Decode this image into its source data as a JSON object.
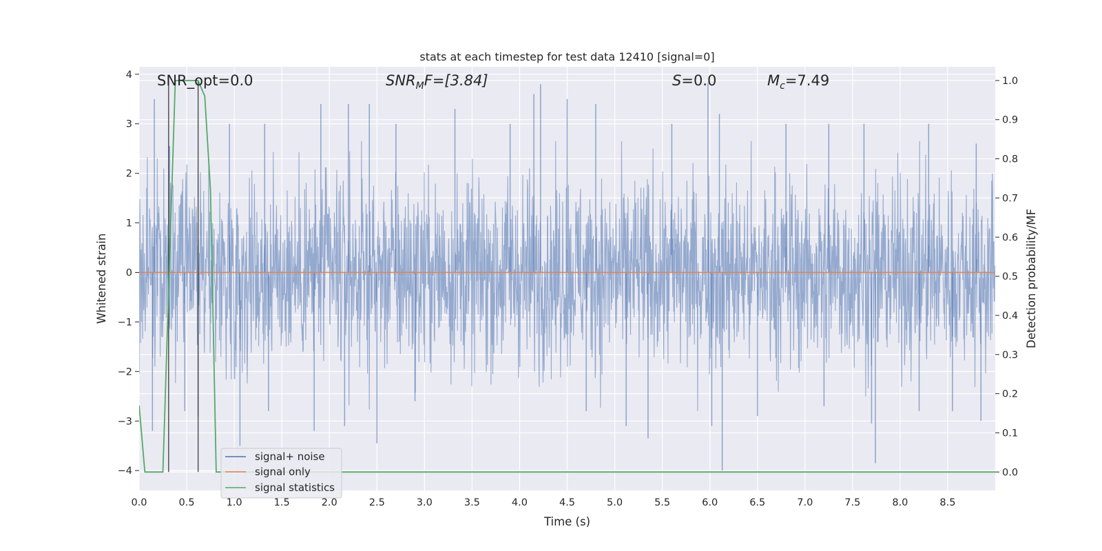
{
  "chart_data": {
    "type": "line",
    "title": "stats at each timestep for test data 12410 [signal=0]",
    "xlabel": "Time (s)",
    "ylabel": "Whitened strain",
    "ylabel_right": "Detection probability/MF",
    "xlim": [
      0.0,
      9.0
    ],
    "ylim": [
      -4.4,
      4.15
    ],
    "ylim_right": [
      -0.047,
      1.035
    ],
    "grid": true,
    "legend_position": "lower-left",
    "x_ticks": [
      "0.0",
      "0.5",
      "1.0",
      "1.5",
      "2.0",
      "2.5",
      "3.0",
      "3.5",
      "4.0",
      "4.5",
      "5.0",
      "5.5",
      "6.0",
      "6.5",
      "7.0",
      "7.5",
      "8.0",
      "8.5"
    ],
    "y_ticks": [
      "4",
      "3",
      "2",
      "1",
      "0",
      "−1",
      "−2",
      "−3",
      "−4"
    ],
    "y_ticks_right": [
      "1.0",
      "0.9",
      "0.8",
      "0.7",
      "0.6",
      "0.5",
      "0.4",
      "0.3",
      "0.2",
      "0.1",
      "0.0"
    ],
    "annotations": [
      {
        "text": "SNR_opt=0.0",
        "style": "plain"
      },
      {
        "text": "SNR_MF=[3.84]",
        "style": "math",
        "base": "SNR",
        "sub": "M",
        "tail": "F=[3.84]"
      },
      {
        "text": "S=0.0",
        "style": "math",
        "base": "S",
        "sub": "",
        "tail": "=0.0"
      },
      {
        "text": "M_c=7.49",
        "style": "math",
        "base": "M",
        "sub": "c",
        "tail": "=7.49"
      }
    ],
    "series": [
      {
        "name": "signal+ noise",
        "color": "#4c72b0",
        "kind": "noise",
        "envelope": {
          "core": [
            -1.6,
            1.45
          ],
          "typical_peak": [
            -2.5,
            2.4
          ],
          "max": 3.82,
          "min": -4.0
        },
        "spikes": [
          {
            "x": 0.16,
            "y": 3.5
          },
          {
            "x": 0.32,
            "y": 2.55
          },
          {
            "x": 0.95,
            "y": 3.0
          },
          {
            "x": 1.32,
            "y": 3.0
          },
          {
            "x": 1.91,
            "y": 3.4
          },
          {
            "x": 2.2,
            "y": 3.4
          },
          {
            "x": 2.42,
            "y": 3.4
          },
          {
            "x": 2.7,
            "y": 3.0
          },
          {
            "x": 3.32,
            "y": 3.3
          },
          {
            "x": 3.9,
            "y": 3.0
          },
          {
            "x": 4.15,
            "y": 3.6
          },
          {
            "x": 4.22,
            "y": 3.8
          },
          {
            "x": 4.5,
            "y": 3.5
          },
          {
            "x": 4.8,
            "y": 3.4
          },
          {
            "x": 5.6,
            "y": 3.0
          },
          {
            "x": 5.98,
            "y": 3.82
          },
          {
            "x": 6.1,
            "y": 3.2
          },
          {
            "x": 6.8,
            "y": 3.0
          },
          {
            "x": 7.25,
            "y": 3.0
          },
          {
            "x": 7.62,
            "y": 3.0
          },
          {
            "x": 8.3,
            "y": 3.0
          },
          {
            "x": 8.8,
            "y": 2.6
          },
          {
            "x": 0.14,
            "y": -3.2
          },
          {
            "x": 0.48,
            "y": -2.8
          },
          {
            "x": 0.62,
            "y": -2.9
          },
          {
            "x": 1.06,
            "y": -3.5
          },
          {
            "x": 1.36,
            "y": -2.8
          },
          {
            "x": 1.84,
            "y": -3.2
          },
          {
            "x": 2.16,
            "y": -3.1
          },
          {
            "x": 2.5,
            "y": -3.45
          },
          {
            "x": 2.9,
            "y": -2.6
          },
          {
            "x": 4.7,
            "y": -2.8
          },
          {
            "x": 5.12,
            "y": -3.1
          },
          {
            "x": 5.35,
            "y": -3.35
          },
          {
            "x": 6.02,
            "y": -3.1
          },
          {
            "x": 6.13,
            "y": -4.0
          },
          {
            "x": 6.5,
            "y": -2.9
          },
          {
            "x": 7.2,
            "y": -2.7
          },
          {
            "x": 7.7,
            "y": -3.05
          },
          {
            "x": 7.74,
            "y": -3.85
          },
          {
            "x": 8.2,
            "y": -2.8
          },
          {
            "x": 8.55,
            "y": -2.8
          },
          {
            "x": 8.85,
            "y": -3.0
          }
        ]
      },
      {
        "name": "signal only",
        "color": "#dd8452",
        "kind": "line",
        "x": [
          0.0,
          9.0
        ],
        "y": [
          0.0,
          0.0
        ]
      },
      {
        "name": "signal statistics",
        "color": "#55a868",
        "kind": "line",
        "axis": "right",
        "x": [
          0.0,
          0.06,
          0.12,
          0.25,
          0.38,
          0.5,
          0.62,
          0.69,
          0.75,
          0.81,
          0.88,
          9.0
        ],
        "y": [
          0.17,
          0.0,
          0.0,
          0.0,
          1.0,
          1.0,
          1.0,
          0.96,
          0.72,
          0.0,
          0.0,
          0.0
        ]
      }
    ],
    "vertical_markers": [
      {
        "x": 0.31,
        "color": "#3b3b3b"
      },
      {
        "x": 0.62,
        "color": "#3b3b3b"
      }
    ]
  }
}
